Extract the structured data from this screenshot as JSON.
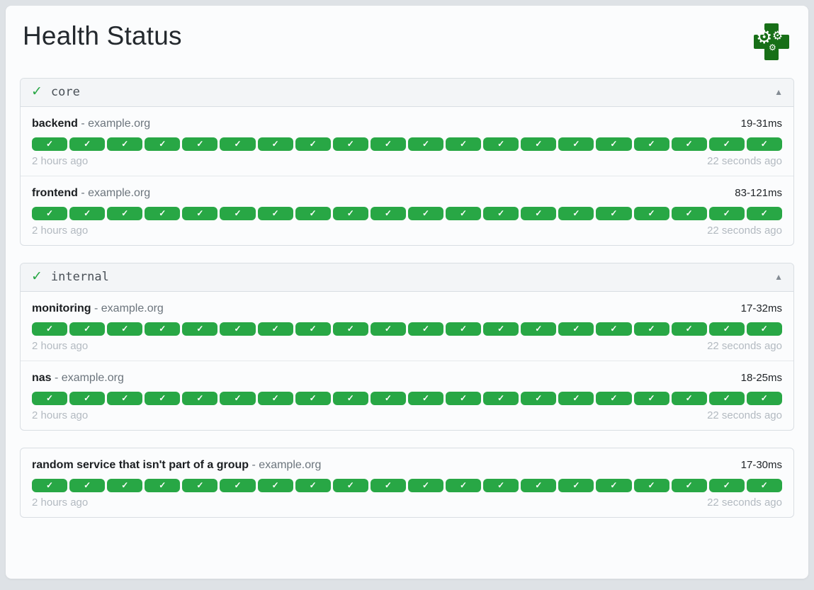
{
  "page": {
    "title": "Health Status"
  },
  "icons": {
    "logo": "health-cross-with-gears",
    "gear_glyph": "⚙",
    "group_status_glyph": "✓",
    "collapse_glyph": "▲",
    "check_glyph": "✓"
  },
  "colors": {
    "success_green": "#28a745",
    "logo_green": "#176f17",
    "page_background": "#dee2e6",
    "card_background": "#fbfcfd",
    "muted_text": "#6c757d",
    "timestamp_text": "#b3bac1"
  },
  "groups": [
    {
      "name": "core",
      "status": "healthy",
      "has_header": true,
      "services": [
        {
          "name": "backend",
          "separator": "-",
          "host": "example.org",
          "response_time": "19-31ms",
          "oldest_check": "2 hours ago",
          "latest_check": "22 seconds ago",
          "checks": {
            "count": 20,
            "status": "success"
          }
        },
        {
          "name": "frontend",
          "separator": "-",
          "host": "example.org",
          "response_time": "83-121ms",
          "oldest_check": "2 hours ago",
          "latest_check": "22 seconds ago",
          "checks": {
            "count": 20,
            "status": "success"
          }
        }
      ]
    },
    {
      "name": "internal",
      "status": "healthy",
      "has_header": true,
      "services": [
        {
          "name": "monitoring",
          "separator": "-",
          "host": "example.org",
          "response_time": "17-32ms",
          "oldest_check": "2 hours ago",
          "latest_check": "22 seconds ago",
          "checks": {
            "count": 20,
            "status": "success"
          }
        },
        {
          "name": "nas",
          "separator": "-",
          "host": "example.org",
          "response_time": "18-25ms",
          "oldest_check": "2 hours ago",
          "latest_check": "22 seconds ago",
          "checks": {
            "count": 20,
            "status": "success"
          }
        }
      ]
    },
    {
      "name": null,
      "status": "healthy",
      "has_header": false,
      "services": [
        {
          "name": "random service that isn't part of a group",
          "separator": "-",
          "host": "example.org",
          "response_time": "17-30ms",
          "oldest_check": "2 hours ago",
          "latest_check": "22 seconds ago",
          "checks": {
            "count": 20,
            "status": "success"
          }
        }
      ]
    }
  ]
}
